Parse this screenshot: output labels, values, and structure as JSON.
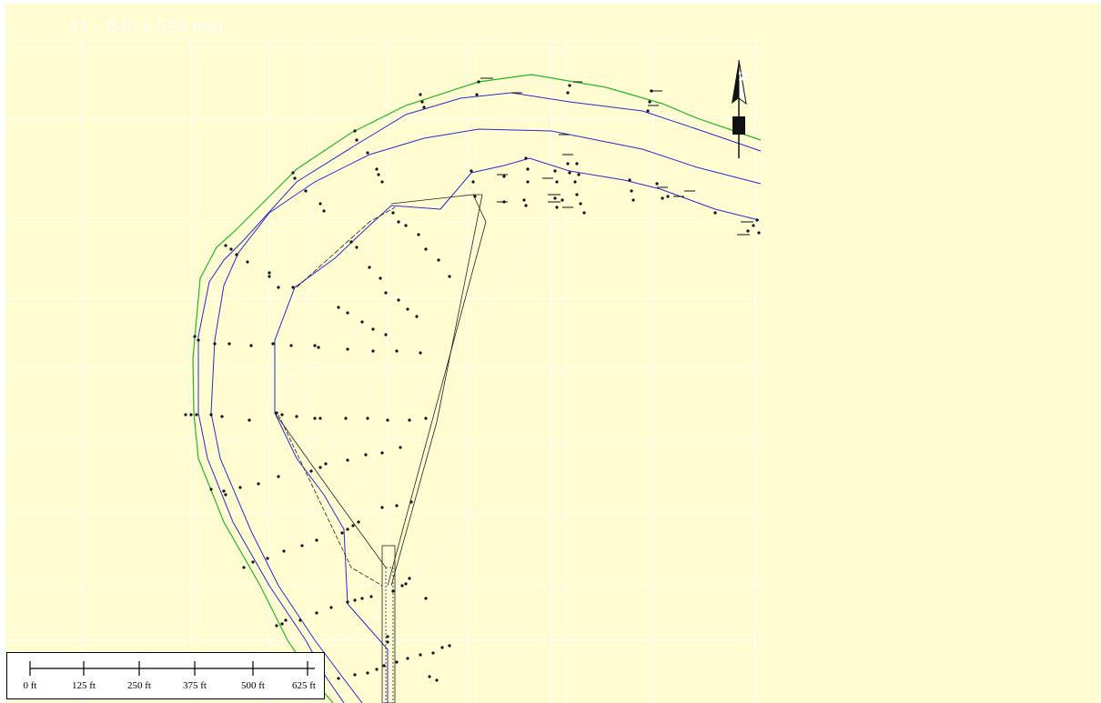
{
  "sheet": {
    "label": "A1 - 840 x 594 mm"
  },
  "colors": {
    "background": "#fefcd0",
    "grid": "#ffffff",
    "boundary_green": "#27b52b",
    "road_blue": "#2b2bd0",
    "points": "#111111"
  },
  "north_arrow": {
    "label": "N",
    "icon": "north-arrow-icon"
  },
  "scale_bar": {
    "ticks": [
      "0 ft",
      "125 ft",
      "250 ft",
      "375 ft",
      "500 ft",
      "625 ft"
    ]
  }
}
